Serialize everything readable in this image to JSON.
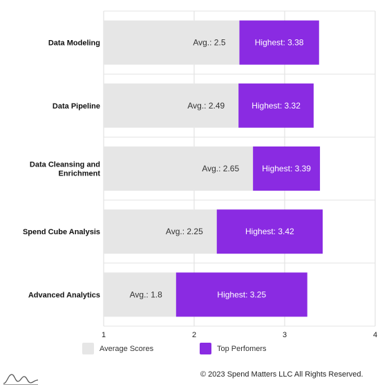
{
  "chart_data": {
    "type": "bar",
    "orientation": "horizontal",
    "categories": [
      "Data Modeling",
      "Data Pipeline",
      "Data Cleansing and Enrichment",
      "Spend Cube Analysis",
      "Advanced Analytics"
    ],
    "category_lines": [
      [
        "Data Modeling"
      ],
      [
        "Data Pipeline"
      ],
      [
        "Data Cleansing and",
        "Enrichment"
      ],
      [
        "Spend Cube Analysis"
      ],
      [
        "Advanced Analytics"
      ]
    ],
    "series": [
      {
        "name": "Average Scores",
        "values": [
          2.5,
          2.49,
          2.65,
          2.25,
          1.8
        ],
        "color": "#e6e6e6",
        "labels": [
          "Avg.: 2.5",
          "Avg.: 2.49",
          "Avg.: 2.65",
          "Avg.: 2.25",
          "Avg.: 1.8"
        ]
      },
      {
        "name": "Top Perfomers",
        "values": [
          3.38,
          3.32,
          3.39,
          3.42,
          3.25
        ],
        "color": "#8a2be2",
        "labels": [
          "Highest: 3.38",
          "Highest: 3.32",
          "Highest: 3.39",
          "Highest: 3.42",
          "Highest: 3.25"
        ]
      }
    ],
    "xlim": [
      1,
      4
    ],
    "xticks": [
      1,
      2,
      3,
      4
    ],
    "xtick_labels": [
      "1",
      "2",
      "3",
      "4"
    ],
    "grid": true,
    "legend": "bottom"
  },
  "footer": {
    "copyright": "© 2023 Spend Matters LLC All Rights Reserved."
  }
}
